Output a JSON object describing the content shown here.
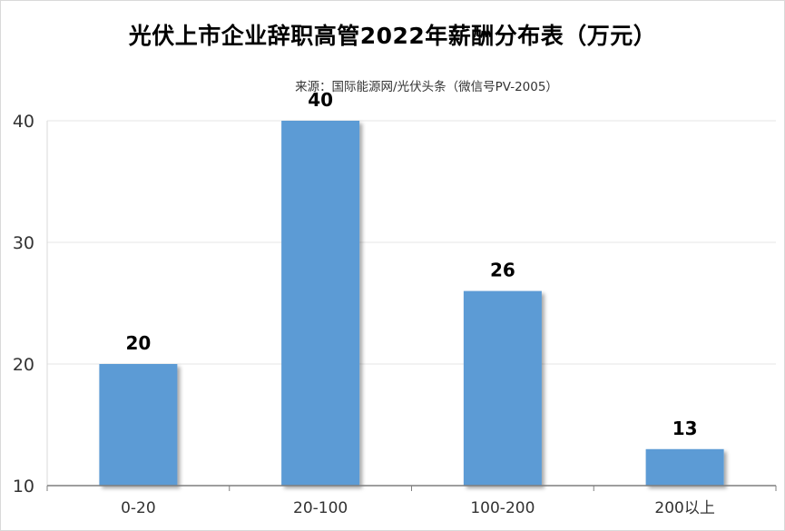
{
  "chart_data": {
    "type": "bar",
    "title": "光伏上市企业辞职高管2022年薪酬分布表（万元）",
    "subtitle": "来源：国际能源网/光伏头条（微信号PV-2005）",
    "categories": [
      "0-20",
      "20-100",
      "100-200",
      "200以上"
    ],
    "values": [
      20,
      40,
      26,
      13
    ],
    "ylim": [
      10,
      40
    ],
    "yticks": [
      10,
      20,
      30,
      40
    ],
    "grid": true,
    "legend": "none",
    "bar_color": "#5b9bd5"
  }
}
